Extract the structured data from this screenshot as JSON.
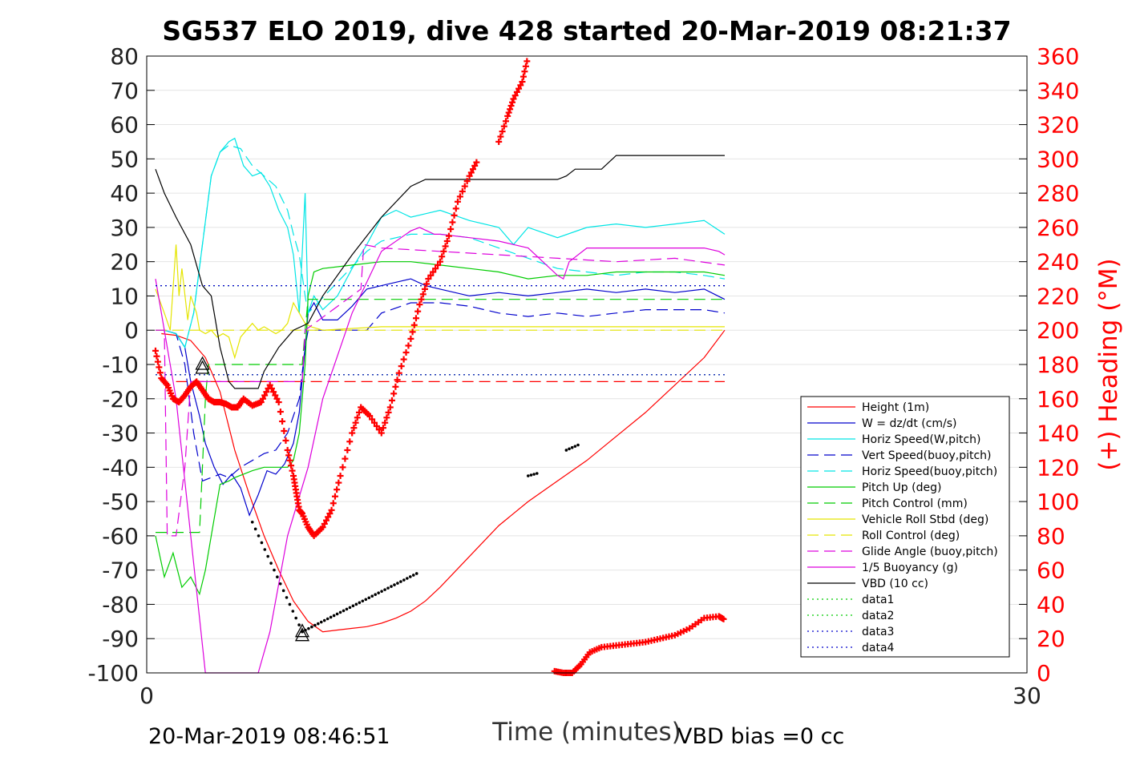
{
  "chart_data": {
    "type": "line",
    "title": "SG537 ELO 2019, dive 428 started 20-Mar-2019 08:21:37",
    "xlabel": "Time (minutes)",
    "ylabel_right": "(+) Heading (°M)",
    "xlim": [
      0,
      30
    ],
    "ylim": [
      -100,
      80
    ],
    "ylim_right": [
      0,
      360
    ],
    "x_ticks": [
      0,
      30
    ],
    "y_ticks": [
      80,
      70,
      60,
      50,
      40,
      30,
      20,
      10,
      0,
      -10,
      -20,
      -30,
      -40,
      -50,
      -60,
      -70,
      -80,
      -90,
      -100
    ],
    "y_ticks_right": [
      360,
      340,
      320,
      300,
      280,
      260,
      240,
      220,
      200,
      180,
      160,
      140,
      120,
      100,
      80,
      60,
      40,
      20,
      0
    ],
    "grid": "horizontal",
    "legend_position": "bottom-right",
    "footer_left": "20-Mar-2019 08:46:51",
    "footer_right": "VBD bias =0 cc",
    "legend": [
      {
        "name": "Height (1m)",
        "color": "#ff0000",
        "style": "solid"
      },
      {
        "name": "W = dz/dt (cm/s)",
        "color": "#0000cc",
        "style": "solid"
      },
      {
        "name": "Horiz Speed(W,pitch)",
        "color": "#00e5e5",
        "style": "solid"
      },
      {
        "name": "Vert Speed(buoy,pitch)",
        "color": "#0000cc",
        "style": "dashed"
      },
      {
        "name": "Horiz Speed(buoy,pitch)",
        "color": "#00e5e5",
        "style": "dashed"
      },
      {
        "name": "Pitch Up (deg)",
        "color": "#00cc00",
        "style": "solid"
      },
      {
        "name": "Pitch Control (mm)",
        "color": "#00cc00",
        "style": "dashed"
      },
      {
        "name": "Vehicle Roll Stbd (deg)",
        "color": "#e5e500",
        "style": "solid"
      },
      {
        "name": "Roll Control (deg)",
        "color": "#e5e500",
        "style": "dashed"
      },
      {
        "name": "Glide Angle (buoy,pitch)",
        "color": "#dd00dd",
        "style": "dashed"
      },
      {
        "name": "1/5 Buoyancy (g)",
        "color": "#dd00dd",
        "style": "solid"
      },
      {
        "name": "VBD (10 cc)",
        "color": "#000000",
        "style": "solid"
      },
      {
        "name": "data1",
        "color": "#00cc00",
        "style": "dotted"
      },
      {
        "name": "data2",
        "color": "#00cc00",
        "style": "dotted"
      },
      {
        "name": "data3",
        "color": "#0000cc",
        "style": "dotted"
      },
      {
        "name": "data4",
        "color": "#0000cc",
        "style": "dotted"
      }
    ],
    "series": [
      {
        "name": "Height (1m)",
        "axis": "left",
        "color": "#ff0000",
        "style": "solid",
        "x": [
          0.5,
          1.0,
          1.5,
          2.0,
          2.5,
          3.0,
          3.5,
          4.0,
          4.5,
          5.0,
          5.5,
          6.0,
          6.5,
          7.0,
          7.5,
          8.0,
          8.5,
          9.0,
          9.5,
          10.0,
          11.0,
          12.0,
          13.0,
          14.0,
          15.0,
          16.0,
          17.0,
          18.0,
          19.0,
          19.7
        ],
        "y": [
          -1,
          -1.5,
          -3,
          -8,
          -18,
          -35,
          -48,
          -60,
          -70,
          -79,
          -85,
          -88,
          -87.5,
          -87,
          -86.5,
          -85.5,
          -84,
          -82,
          -79,
          -75,
          -66,
          -57,
          -50,
          -44,
          -38,
          -31,
          -24,
          -16,
          -8,
          0
        ]
      },
      {
        "name": "W = dz/dt (cm/s)",
        "axis": "left",
        "color": "#0000cc",
        "style": "solid",
        "x": [
          0.3,
          0.6,
          1.0,
          1.3,
          1.5,
          1.8,
          2.0,
          2.3,
          2.6,
          2.9,
          3.2,
          3.5,
          3.8,
          4.1,
          4.4,
          4.7,
          5.0,
          5.2,
          5.4,
          5.5,
          5.7,
          6.0,
          6.5,
          7.0,
          7.5,
          8.0,
          8.5,
          9.0,
          9.5,
          10.0,
          11.0,
          12.0,
          13.0,
          14.0,
          15.0,
          16.0,
          17.0,
          18.0,
          19.0,
          19.7
        ],
        "y": [
          0,
          0,
          -1,
          -5,
          -15,
          -25,
          -33,
          -40,
          -45,
          -42,
          -46,
          -54,
          -48,
          -41,
          -42,
          -39,
          -33,
          -24,
          -5,
          5,
          8,
          3,
          3,
          7,
          12,
          13,
          14,
          15,
          13,
          12,
          10,
          11,
          10,
          11,
          12,
          11,
          12,
          11,
          12,
          9
        ]
      },
      {
        "name": "Horiz Speed(W,pitch)",
        "axis": "left",
        "color": "#00e5e5",
        "style": "solid",
        "x": [
          0.3,
          0.6,
          1.0,
          1.3,
          1.6,
          1.9,
          2.2,
          2.5,
          2.8,
          3.0,
          3.3,
          3.6,
          3.9,
          4.2,
          4.5,
          4.8,
          5.0,
          5.2,
          5.4,
          5.5,
          5.7,
          6.0,
          6.5,
          7.0,
          7.5,
          8.0,
          8.5,
          9.0,
          9.5,
          10.0,
          11.0,
          12.0,
          12.5,
          13.0,
          14.0,
          15.0,
          16.0,
          17.0,
          18.0,
          19.0,
          19.7
        ],
        "y": [
          0,
          0,
          -1,
          -5,
          5,
          25,
          45,
          52,
          55,
          56,
          48,
          45,
          46,
          42,
          35,
          30,
          22,
          5,
          40,
          5,
          10,
          6,
          10,
          18,
          25,
          33,
          35,
          33,
          34,
          35,
          32,
          30,
          25,
          30,
          27,
          30,
          31,
          30,
          31,
          32,
          28
        ]
      },
      {
        "name": "Vert Speed(buoy,pitch)",
        "axis": "left",
        "color": "#0000cc",
        "style": "dashed",
        "x": [
          0.3,
          0.6,
          1.0,
          1.3,
          1.6,
          1.9,
          2.2,
          2.5,
          2.8,
          3.2,
          3.6,
          4.0,
          4.4,
          4.8,
          5.2,
          5.4,
          5.5,
          7.5,
          8.0,
          9.0,
          10.0,
          11.0,
          12.0,
          13.0,
          14.0,
          15.0,
          16.0,
          17.0,
          18.0,
          19.0,
          19.7
        ],
        "y": [
          0,
          0,
          -1,
          -10,
          -30,
          -44,
          -43,
          -42,
          -43,
          -40,
          -38,
          -36,
          -35,
          -30,
          -20,
          -5,
          0,
          0,
          5,
          8,
          8,
          7,
          5,
          4,
          5,
          4,
          5,
          6,
          6,
          6,
          5
        ]
      },
      {
        "name": "Horiz Speed(buoy,pitch)",
        "axis": "left",
        "color": "#00e5e5",
        "style": "dashed",
        "x": [
          0.3,
          0.6,
          1.0,
          1.3,
          1.6,
          1.9,
          2.2,
          2.5,
          2.8,
          3.2,
          3.6,
          4.0,
          4.4,
          4.8,
          5.0,
          5.2,
          5.4,
          5.5,
          7.5,
          8.0,
          9.0,
          10.0,
          11.0,
          12.0,
          13.0,
          14.0,
          15.0,
          16.0,
          17.0,
          18.0,
          19.0,
          19.7
        ],
        "y": [
          0,
          0,
          -1,
          -5,
          5,
          25,
          45,
          52,
          54,
          53,
          48,
          45,
          42,
          35,
          28,
          22,
          10,
          5,
          23,
          26,
          28,
          28,
          27,
          24,
          21,
          18,
          17,
          16,
          17,
          17,
          16,
          15
        ]
      },
      {
        "name": "Pitch Up (deg)",
        "axis": "left",
        "color": "#00cc00",
        "style": "solid",
        "x": [
          0.3,
          0.6,
          0.9,
          1.2,
          1.5,
          1.8,
          2.0,
          2.2,
          2.5,
          2.8,
          3.0,
          3.3,
          3.6,
          4.0,
          4.4,
          4.8,
          5.0,
          5.2,
          5.4,
          5.5,
          5.7,
          6.0,
          7.0,
          8.0,
          9.0,
          10.0,
          11.0,
          12.0,
          13.0,
          14.0,
          15.0,
          16.0,
          17.0,
          18.0,
          19.0,
          19.7
        ],
        "y": [
          -60,
          -72,
          -65,
          -75,
          -72,
          -77,
          -70,
          -60,
          -45,
          -44,
          -43,
          -42,
          -41,
          -40,
          -40,
          -40,
          -38,
          -30,
          -10,
          10,
          17,
          18,
          19,
          20,
          20,
          19,
          18,
          17,
          15,
          16,
          16,
          17,
          17,
          17,
          17,
          16
        ]
      },
      {
        "name": "Pitch Control (mm)",
        "axis": "left",
        "color": "#00cc00",
        "style": "dashed",
        "x": [
          0.3,
          1.8,
          1.9,
          2.0,
          2.1,
          5.3,
          5.4,
          5.5,
          19.7
        ],
        "y": [
          -59,
          -59,
          -40,
          -20,
          -10,
          -10,
          0,
          9,
          9
        ]
      },
      {
        "name": "Vehicle Roll Stbd (deg)",
        "axis": "left",
        "color": "#e5e500",
        "style": "solid",
        "x": [
          0.3,
          0.6,
          0.8,
          1.0,
          1.1,
          1.2,
          1.4,
          1.5,
          1.7,
          1.8,
          2.0,
          2.2,
          2.4,
          2.6,
          2.8,
          3.0,
          3.2,
          3.4,
          3.6,
          3.8,
          4.0,
          4.2,
          4.4,
          4.6,
          4.8,
          5.0,
          5.2,
          5.4,
          5.6,
          6.0,
          8.0,
          10.0,
          12.0,
          14.0,
          16.0,
          18.0,
          19.7
        ],
        "y": [
          12,
          5,
          0,
          25,
          10,
          18,
          3,
          10,
          5,
          0,
          -1,
          0,
          -2,
          -1,
          -2,
          -8,
          -2,
          0,
          2,
          0,
          1,
          0,
          -1,
          0,
          2,
          8,
          5,
          2,
          1,
          0,
          1,
          1,
          1,
          1,
          1,
          1,
          1
        ]
      },
      {
        "name": "Roll Control (deg)",
        "axis": "left",
        "color": "#e5e500",
        "style": "dashed",
        "x": [
          0.3,
          19.7
        ],
        "y": [
          0,
          0
        ]
      },
      {
        "name": "Glide Angle (buoy,pitch)",
        "axis": "left",
        "color": "#dd00dd",
        "style": "dashed",
        "x": [
          0.3,
          0.6,
          0.7,
          1.0,
          1.3,
          1.5,
          1.8,
          2.0,
          5.3,
          5.4,
          7.3,
          7.4,
          8.0,
          10.0,
          12.0,
          14.0,
          16.0,
          18.0,
          19.7
        ],
        "y": [
          0,
          0,
          -60,
          -60,
          -40,
          -15,
          -15,
          -15,
          -15,
          0,
          12,
          25,
          24,
          23,
          22,
          21,
          20,
          21,
          19
        ]
      },
      {
        "name": "1/5 Buoyancy (g)",
        "axis": "left",
        "color": "#dd00dd",
        "style": "solid",
        "x": [
          0.3,
          1.0,
          1.5,
          2.0,
          2.5,
          3.0,
          3.5,
          3.7,
          3.8,
          4.2,
          4.8,
          5.5,
          6.0,
          7.0,
          8.0,
          9.0,
          9.3,
          9.8,
          10.0,
          11.0,
          12.0,
          12.5,
          13.0,
          14.0,
          14.2,
          14.4,
          15.0,
          16.0,
          17.0,
          18.0,
          19.0,
          19.5,
          19.7
        ],
        "y": [
          15,
          -20,
          -60,
          -100,
          -100,
          -100,
          -100,
          -100,
          -100,
          -88,
          -60,
          -40,
          -20,
          5,
          23,
          29,
          30,
          28,
          28,
          27,
          26,
          25,
          24,
          16,
          15,
          20,
          24,
          24,
          24,
          24,
          24,
          23,
          22
        ]
      },
      {
        "name": "VBD (10 cc)",
        "axis": "left",
        "color": "#000000",
        "style": "solid",
        "x": [
          0.3,
          0.6,
          1.0,
          1.5,
          1.9,
          2.2,
          2.5,
          2.8,
          3.0,
          3.5,
          3.8,
          4.0,
          4.5,
          5.0,
          5.5,
          6.0,
          7.0,
          8.0,
          9.0,
          9.5,
          10.0,
          11.0,
          12.0,
          12.5,
          13.0,
          14.0,
          14.3,
          14.6,
          15.5,
          16.0,
          17.0,
          18.0,
          19.0,
          19.7
        ],
        "y": [
          47,
          40,
          33,
          25,
          13,
          10,
          -5,
          -15,
          -17,
          -17,
          -17,
          -12,
          -5,
          0,
          2,
          10,
          22,
          33,
          42,
          44,
          44,
          44,
          44,
          44,
          44,
          44,
          45,
          47,
          47,
          51,
          51,
          51,
          51,
          51
        ]
      },
      {
        "name": "data1",
        "axis": "left",
        "color": "#00cc00",
        "style": "dotted",
        "x": [
          0.3,
          19.7
        ],
        "y": [
          13,
          13
        ]
      },
      {
        "name": "data2",
        "axis": "left",
        "color": "#00cc00",
        "style": "dotted",
        "x": [
          0.3,
          19.7
        ],
        "y": [
          -13,
          -13
        ]
      },
      {
        "name": "data3",
        "axis": "left",
        "color": "#0000cc",
        "style": "dotted",
        "x": [
          0.3,
          19.7
        ],
        "y": [
          13,
          13
        ]
      },
      {
        "name": "data4",
        "axis": "left",
        "color": "#0000cc",
        "style": "dotted",
        "x": [
          0.3,
          19.7
        ],
        "y": [
          -13,
          -13
        ]
      }
    ],
    "dashed_bands": [
      {
        "color": "#ff0000",
        "x": [
          1.0,
          19.7
        ],
        "y": -15
      }
    ],
    "heading": {
      "axis": "right",
      "color": "#ff0000",
      "marker": "+",
      "x": [
        0.3,
        0.5,
        0.7,
        0.9,
        1.1,
        1.3,
        1.5,
        1.7,
        1.9,
        2.1,
        2.3,
        2.5,
        2.7,
        2.9,
        3.1,
        3.3,
        3.6,
        3.9,
        4.2,
        4.5,
        4.8,
        5.0,
        5.1,
        5.2,
        5.3,
        5.5,
        5.7,
        6.0,
        6.3,
        6.6,
        7.0,
        7.3,
        7.6,
        8.0,
        8.3,
        8.6,
        9.0,
        9.3,
        9.6,
        10.0,
        10.3,
        10.6,
        11.0,
        11.3,
        11.6,
        12.0,
        12.3,
        12.5,
        12.8,
        13.0,
        13.3,
        13.6,
        13.9,
        14.2,
        14.5,
        14.8,
        15.1,
        15.5,
        16.0,
        16.5,
        17.0,
        17.5,
        18.0,
        18.5,
        19.0,
        19.5,
        19.7
      ],
      "y": [
        188,
        172,
        168,
        160,
        158,
        162,
        167,
        170,
        165,
        160,
        158,
        158,
        157,
        155,
        155,
        160,
        156,
        158,
        168,
        158,
        130,
        115,
        105,
        95,
        93,
        85,
        80,
        85,
        95,
        115,
        140,
        155,
        150,
        140,
        155,
        175,
        195,
        215,
        230,
        240,
        255,
        275,
        290,
        300,
        null,
        310,
        325,
        335,
        345,
        360,
        null,
        null,
        1,
        0,
        0,
        5,
        12,
        15,
        16,
        17,
        18,
        20,
        22,
        26,
        32,
        33,
        31
      ]
    },
    "markers": {
      "triangles": [
        {
          "x": 1.9,
          "y": -10
        },
        {
          "x": 5.3,
          "y": -88
        }
      ],
      "dots": [
        {
          "x0": 3.6,
          "x1": 5.3,
          "y0": -56,
          "y1": -88
        },
        {
          "x0": 5.3,
          "x1": 9.2,
          "y0": -88,
          "y1": -71
        },
        {
          "x0": 13.0,
          "x1": 13.3,
          "y0": -42.5,
          "y1": -41.8
        },
        {
          "x0": 14.3,
          "x1": 14.7,
          "y0": -35,
          "y1": -33.5
        }
      ]
    }
  }
}
